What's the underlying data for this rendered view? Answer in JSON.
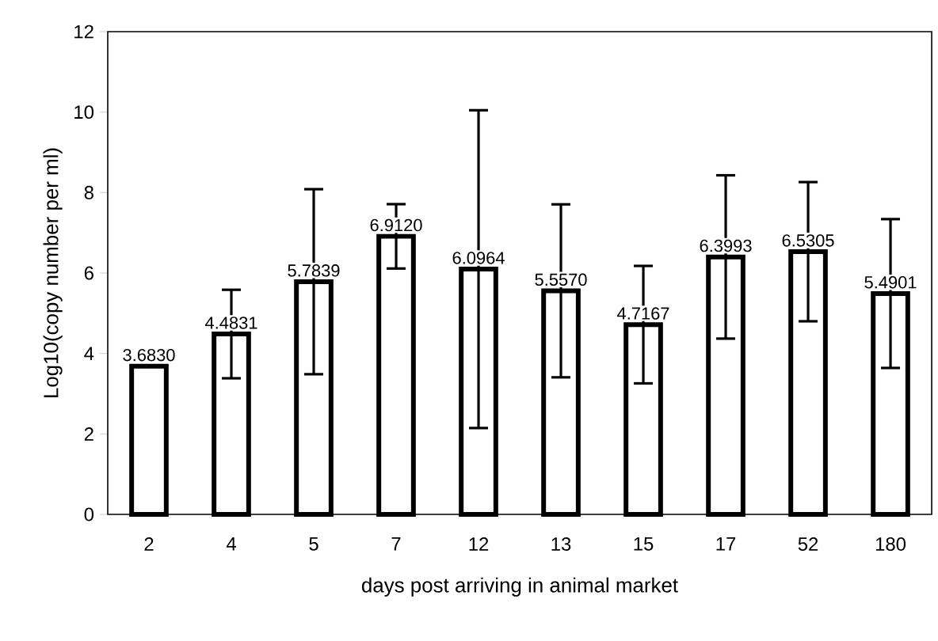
{
  "chart_data": {
    "type": "bar",
    "xlabel": "days post arriving in animal market",
    "ylabel": "Log10(copy number per ml)",
    "categories": [
      "2",
      "4",
      "5",
      "7",
      "12",
      "13",
      "15",
      "17",
      "52",
      "180"
    ],
    "values": [
      3.683,
      4.4831,
      5.7839,
      6.912,
      6.0964,
      5.557,
      4.7167,
      6.3993,
      6.5305,
      5.4901
    ],
    "value_labels": [
      "3.6830",
      "4.4831",
      "5.7839",
      "6.9120",
      "6.0964",
      "5.5570",
      "4.7167",
      "6.3993",
      "6.5305",
      "5.4901"
    ],
    "errors": [
      null,
      1.1,
      2.3,
      0.8,
      3.95,
      2.15,
      1.46,
      2.03,
      1.73,
      1.85
    ],
    "color": "#ffffff",
    "ylim": [
      0,
      12
    ],
    "yticks": [
      0,
      2,
      4,
      6,
      8,
      10,
      12
    ],
    "grid": false
  }
}
